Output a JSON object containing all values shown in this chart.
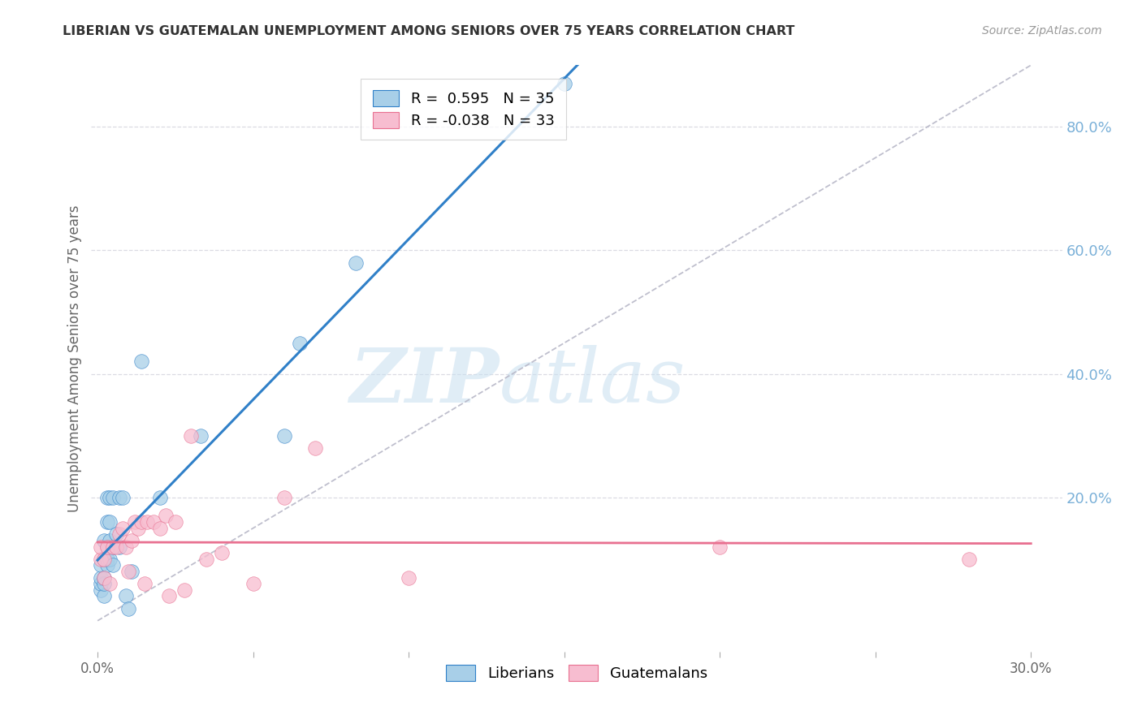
{
  "title": "LIBERIAN VS GUATEMALAN UNEMPLOYMENT AMONG SENIORS OVER 75 YEARS CORRELATION CHART",
  "source": "Source: ZipAtlas.com",
  "ylabel": "Unemployment Among Seniors over 75 years",
  "xlim": [
    -0.002,
    0.31
  ],
  "ylim": [
    -0.05,
    0.9
  ],
  "R_liberian": 0.595,
  "N_liberian": 35,
  "R_guatemalan": -0.038,
  "N_guatemalan": 33,
  "liberian_color": "#a8cfe8",
  "guatemalan_color": "#f7bdd0",
  "liberian_line_color": "#3080c8",
  "guatemalan_line_color": "#e87090",
  "diagonal_color": "#b8b8c8",
  "watermark_zip": "ZIP",
  "watermark_atlas": "atlas",
  "background_color": "#ffffff",
  "grid_color": "#d8d8e0",
  "right_axis_color": "#7ab0d8",
  "ylabel_vals_right": [
    0.2,
    0.4,
    0.6,
    0.8
  ],
  "ylabel_ticks_right": [
    "20.0%",
    "40.0%",
    "60.0%",
    "80.0%"
  ],
  "xtick_vals": [
    0.0,
    0.05,
    0.1,
    0.15,
    0.2,
    0.25,
    0.3
  ],
  "xtick_labels": [
    "0.0%",
    "",
    "",
    "",
    "",
    "",
    "30.0%"
  ],
  "liberian_x": [
    0.001,
    0.001,
    0.001,
    0.001,
    0.002,
    0.002,
    0.002,
    0.002,
    0.002,
    0.003,
    0.003,
    0.003,
    0.003,
    0.003,
    0.004,
    0.004,
    0.004,
    0.004,
    0.005,
    0.005,
    0.005,
    0.006,
    0.007,
    0.007,
    0.008,
    0.009,
    0.01,
    0.011,
    0.014,
    0.02,
    0.033,
    0.06,
    0.065,
    0.083,
    0.15
  ],
  "liberian_y": [
    0.05,
    0.06,
    0.07,
    0.09,
    0.04,
    0.06,
    0.07,
    0.1,
    0.13,
    0.09,
    0.1,
    0.12,
    0.16,
    0.2,
    0.1,
    0.13,
    0.16,
    0.2,
    0.09,
    0.12,
    0.2,
    0.14,
    0.12,
    0.2,
    0.2,
    0.04,
    0.02,
    0.08,
    0.42,
    0.2,
    0.3,
    0.3,
    0.45,
    0.58,
    0.87
  ],
  "guatemalan_x": [
    0.001,
    0.001,
    0.002,
    0.002,
    0.003,
    0.004,
    0.005,
    0.006,
    0.007,
    0.008,
    0.009,
    0.01,
    0.011,
    0.012,
    0.013,
    0.014,
    0.015,
    0.016,
    0.018,
    0.02,
    0.022,
    0.023,
    0.025,
    0.028,
    0.03,
    0.035,
    0.04,
    0.05,
    0.06,
    0.07,
    0.1,
    0.2,
    0.28
  ],
  "guatemalan_y": [
    0.1,
    0.12,
    0.07,
    0.1,
    0.12,
    0.06,
    0.12,
    0.12,
    0.14,
    0.15,
    0.12,
    0.08,
    0.13,
    0.16,
    0.15,
    0.16,
    0.06,
    0.16,
    0.16,
    0.15,
    0.17,
    0.04,
    0.16,
    0.05,
    0.3,
    0.1,
    0.11,
    0.06,
    0.2,
    0.28,
    0.07,
    0.12,
    0.1
  ]
}
